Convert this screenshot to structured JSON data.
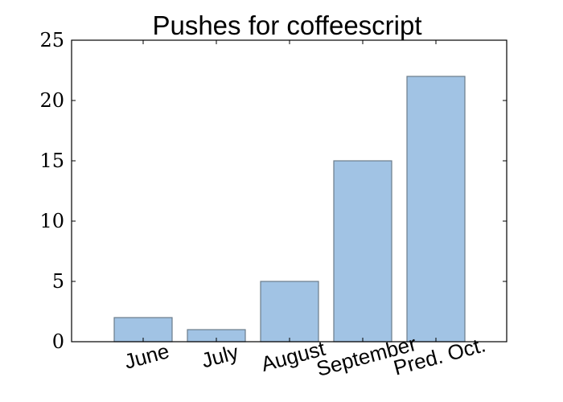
{
  "chart_data": {
    "type": "bar",
    "title": "Pushes for coffeescript",
    "categories": [
      "June",
      "July",
      "August",
      "September",
      "Pred. Oct."
    ],
    "values": [
      2,
      1,
      5,
      15,
      22
    ],
    "xlabel": "",
    "ylabel": "",
    "ylim": [
      0,
      25
    ],
    "yticks": [
      "0",
      "5",
      "10",
      "15",
      "20",
      "25"
    ],
    "grid": false,
    "legend": "none",
    "colors": {
      "bar_fill": "#a1c3e4",
      "bar_edge": "#6b7b8a",
      "axes": "#000000"
    }
  }
}
